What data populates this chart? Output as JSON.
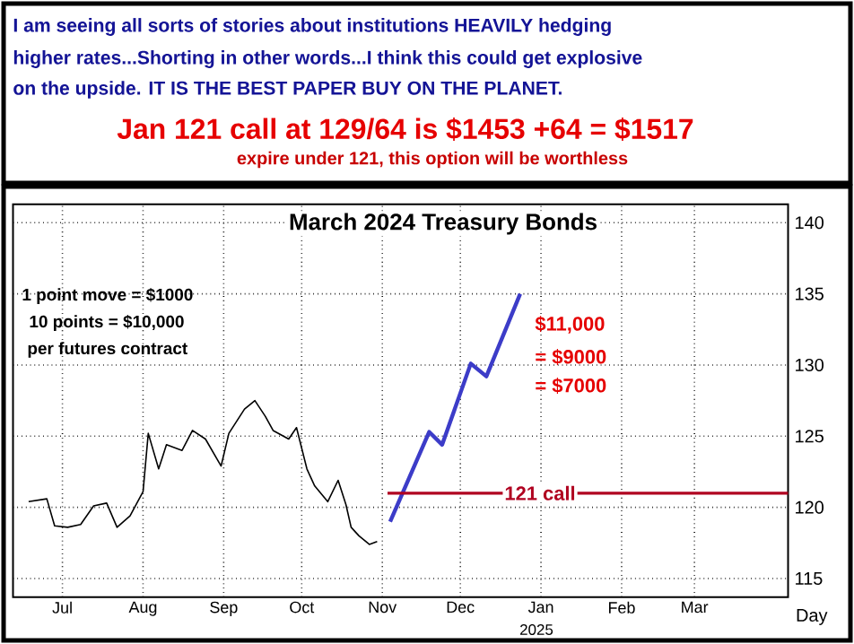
{
  "chart_data": {
    "type": "line",
    "title": "March 2024 Treasury Bonds",
    "xlabel": "Day",
    "annotations": [
      "I am seeing all sorts of stories about institutions HEAVILY hedging",
      "higher rates...Shorting in other words...I think this could get explosive",
      "on the upside. IT IS THE BEST PAPER BUY ON THE PLANET.",
      "Jan 121 call at  129/64 is $1453 +64 = $1517",
      "expire under 121, this option will be worthless",
      "1 point move = $1000",
      "10 points = $10,000",
      "per futures contract",
      "$11,000",
      "= $9000",
      "= $7000",
      "2025"
    ],
    "series": [
      {
        "color": "#000000",
        "x": [
          "2024-06-18",
          "2024-06-25",
          "2024-06-28",
          "2024-07-03",
          "2024-07-08",
          "2024-07-13",
          "2024-07-18",
          "2024-07-22",
          "2024-07-27",
          "2024-08-01",
          "2024-08-03",
          "2024-08-07",
          "2024-08-10",
          "2024-08-16",
          "2024-08-20",
          "2024-08-25",
          "2024-08-31",
          "2024-09-03",
          "2024-09-09",
          "2024-09-13",
          "2024-09-17",
          "2024-09-20",
          "2024-09-26",
          "2024-09-29",
          "2024-10-03",
          "2024-10-06",
          "2024-10-11",
          "2024-10-15",
          "2024-10-18",
          "2024-10-20",
          "2024-10-23",
          "2024-10-27",
          "2024-10-30"
        ],
        "values": [
          120.4,
          120.6,
          118.7,
          118.6,
          118.8,
          120.1,
          120.3,
          118.6,
          119.4,
          121.1,
          125.2,
          122.7,
          124.4,
          124.0,
          125.4,
          124.8,
          122.9,
          125.2,
          126.9,
          127.5,
          126.4,
          125.4,
          124.8,
          125.6,
          122.7,
          121.5,
          120.4,
          121.9,
          120.2,
          118.6,
          118.0,
          117.4,
          117.6
        ]
      },
      {
        "color": "#3c3cc8",
        "x": [
          "2024-11-04",
          "2024-11-19",
          "2024-11-24",
          "2024-12-05",
          "2024-12-11",
          "2024-12-24"
        ],
        "values": [
          119.0,
          125.3,
          124.4,
          130.1,
          129.2,
          135.0
        ]
      }
    ],
    "xlim": [
      "2024-06-12",
      "2025-04-06"
    ],
    "xticks": [
      {
        "value": "2024-07-01",
        "label": "Jul"
      },
      {
        "value": "2024-08-01",
        "label": "Aug"
      },
      {
        "value": "2024-09-01",
        "label": "Sep"
      },
      {
        "value": "2024-10-01",
        "label": "Oct"
      },
      {
        "value": "2024-11-01",
        "label": "Nov"
      },
      {
        "value": "2024-12-01",
        "label": "Dec"
      },
      {
        "value": "2025-01-01",
        "label": "Jan"
      },
      {
        "value": "2025-02-01",
        "label": "Feb"
      },
      {
        "value": "2025-03-01",
        "label": "Mar"
      }
    ],
    "ylim": [
      113.7,
      141.3
    ],
    "yticks": [
      115,
      120,
      125,
      130,
      135,
      140
    ],
    "ref_lines": [
      {
        "axis": "y",
        "value": 121,
        "label": "121 call",
        "color": "#b00020"
      }
    ],
    "grid": true,
    "legend": false,
    "marker": "none",
    "line_style": "solid"
  }
}
